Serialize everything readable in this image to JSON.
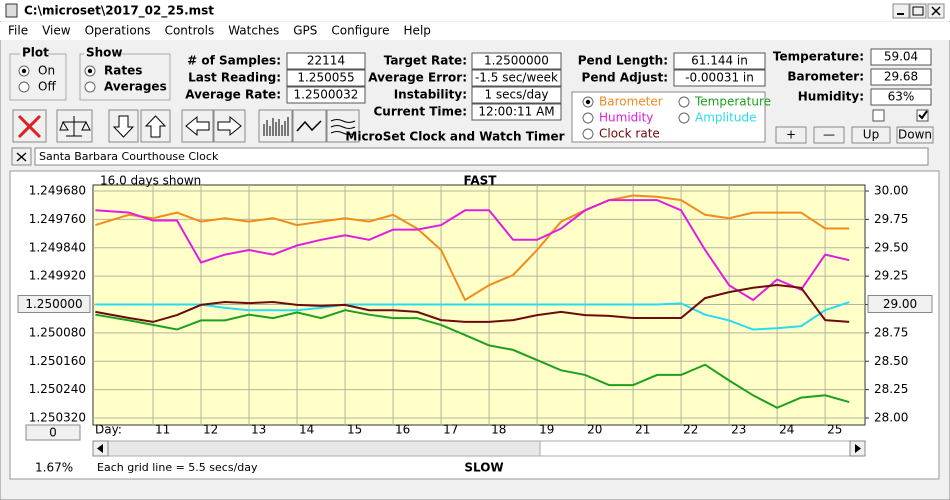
{
  "window": {
    "title": "C:\\microset\\2017_02_25.mst"
  },
  "menu": [
    "File",
    "View",
    "Operations",
    "Controls",
    "Watches",
    "GPS",
    "Configure",
    "Help"
  ],
  "plot_group": {
    "title": "Plot",
    "options": [
      "On",
      "Off"
    ],
    "selected": 0
  },
  "show_group": {
    "title": "Show",
    "options": [
      "Rates",
      "Averages"
    ],
    "selected": 0
  },
  "stats": [
    {
      "label": "# of Samples:",
      "value": "22114"
    },
    {
      "label": "Last Reading:",
      "value": "1.250055"
    },
    {
      "label": "Average Rate:",
      "value": "1.2500032"
    }
  ],
  "rates": [
    {
      "label": "Target Rate:",
      "value": "1.2500000"
    },
    {
      "label": "Average Error:",
      "value": "-1.5 sec/week"
    },
    {
      "label": "Instability:",
      "value": "1 secs/day"
    },
    {
      "label": "Current Time:",
      "value": "12:00:11 AM"
    }
  ],
  "pendulum": [
    {
      "label": "Pend Length:",
      "value": "61.144 in"
    },
    {
      "label": "Pend Adjust:",
      "value": "-0.00031 in"
    }
  ],
  "environment": [
    {
      "label": "Temperature:",
      "value": "59.04"
    },
    {
      "label": "Barometer:",
      "value": "29.68"
    },
    {
      "label": "Humidity:",
      "value": "63%"
    }
  ],
  "checkboxes": [
    false,
    true
  ],
  "environment_buttons": [
    "+",
    "—",
    "Up",
    "Down"
  ],
  "app_title": "MicroSet Clock and Watch Timer",
  "watch_name": "Santa Barbara Courthouse Clock",
  "plot": {
    "type": "line",
    "top_label": "FAST",
    "bottom_label": "SLOW",
    "days_shown": "16.0 days shown",
    "grid_note": "Each grid line = 5.5 secs/day",
    "x_label": "Day:",
    "zoom_label": "1.67%",
    "offset_button": "0",
    "legend_selected": 0,
    "xlim": [
      9.75,
      25.83
    ],
    "xticks": [
      11,
      12,
      13,
      14,
      15,
      16,
      17,
      18,
      19,
      20,
      21,
      22,
      23,
      24,
      25
    ],
    "ylim": [
      1.25032,
      1.24968
    ],
    "yticks": [
      {
        "value": 1.24968,
        "label": "1.249680"
      },
      {
        "value": 1.24976,
        "label": "1.249760"
      },
      {
        "value": 1.24984,
        "label": "1.249840"
      },
      {
        "value": 1.24992,
        "label": "1.249920"
      },
      {
        "value": 1.25,
        "label": "1.250000"
      },
      {
        "value": 1.25008,
        "label": "1.250080"
      },
      {
        "value": 1.25016,
        "label": "1.250160"
      },
      {
        "value": 1.25024,
        "label": "1.250240"
      },
      {
        "value": 1.25032,
        "label": "1.250320"
      }
    ],
    "y2lim": [
      28,
      30
    ],
    "y2ticks": [
      {
        "value": 30,
        "label": "30.00"
      },
      {
        "value": 29.75,
        "label": "29.75"
      },
      {
        "value": 29.5,
        "label": "29.50"
      },
      {
        "value": 29.25,
        "label": "29.25"
      },
      {
        "value": 29,
        "label": "29.00"
      },
      {
        "value": 28.75,
        "label": "28.75"
      },
      {
        "value": 28.5,
        "label": "28.50"
      },
      {
        "value": 28.25,
        "label": "28.25"
      },
      {
        "value": 28,
        "label": "28.00"
      }
    ],
    "grid": true,
    "x": [
      9.8,
      10.5,
      11,
      11.5,
      12,
      12.5,
      13,
      13.5,
      14,
      14.5,
      15,
      15.5,
      16,
      16.5,
      17,
      17.5,
      18,
      18.5,
      19,
      19.5,
      20,
      20.5,
      21,
      21.5,
      22,
      22.5,
      23,
      23.5,
      24,
      24.5,
      25,
      25.5
    ],
    "series": [
      {
        "name": "Barometer",
        "color": "#f08c1e",
        "axis": "y2",
        "values": [
          29.7,
          29.79,
          29.76,
          29.81,
          29.73,
          29.76,
          29.73,
          29.76,
          29.7,
          29.73,
          29.76,
          29.73,
          29.79,
          29.67,
          29.48,
          29.04,
          29.17,
          29.26,
          29.48,
          29.73,
          29.83,
          29.92,
          29.96,
          29.95,
          29.92,
          29.79,
          29.76,
          29.81,
          29.81,
          29.81,
          29.67,
          29.67
        ]
      },
      {
        "name": "Temperature",
        "color": "#1ea01e",
        "axis": "y2",
        "values": [
          28.91,
          28.86,
          28.82,
          28.78,
          28.86,
          28.86,
          28.91,
          28.88,
          28.93,
          28.88,
          28.95,
          28.91,
          28.88,
          28.88,
          28.82,
          28.73,
          28.64,
          28.6,
          28.51,
          28.42,
          28.38,
          28.29,
          28.29,
          28.38,
          28.38,
          28.47,
          28.33,
          28.2,
          28.09,
          28.18,
          28.2,
          28.14
        ]
      },
      {
        "name": "Humidity",
        "color": "#e01ee0",
        "axis": "y2",
        "values": [
          29.83,
          29.81,
          29.74,
          29.74,
          29.37,
          29.44,
          29.48,
          29.44,
          29.52,
          29.57,
          29.61,
          29.57,
          29.66,
          29.66,
          29.7,
          29.83,
          29.83,
          29.57,
          29.57,
          29.67,
          29.83,
          29.92,
          29.92,
          29.92,
          29.83,
          29.48,
          29.17,
          29.04,
          29.22,
          29.13,
          29.44,
          29.39
        ]
      },
      {
        "name": "Amplitude",
        "color": "#28dcf0",
        "axis": "y2",
        "values": [
          29.0,
          29.0,
          29.0,
          29.0,
          29.0,
          28.97,
          28.95,
          28.95,
          28.95,
          28.97,
          29.0,
          29.0,
          29.0,
          29.0,
          29.0,
          29.0,
          29.0,
          29.0,
          29.0,
          29.0,
          29.0,
          29.0,
          29.0,
          29.0,
          29.01,
          28.91,
          28.86,
          28.78,
          28.79,
          28.81,
          28.95,
          29.02
        ]
      },
      {
        "name": "Clock rate",
        "color": "#6e0a0a",
        "axis": "y",
        "values": [
          1.250021,
          1.250038,
          1.250049,
          1.25003,
          1.250001,
          1.249993,
          1.249996,
          1.249993,
          1.250001,
          1.250004,
          1.250001,
          1.250016,
          1.250016,
          1.250021,
          1.250044,
          1.250049,
          1.250049,
          1.250044,
          1.25003,
          1.250021,
          1.25003,
          1.250032,
          1.250038,
          1.250038,
          1.250038,
          1.249982,
          1.249965,
          1.249953,
          1.249945,
          1.249953,
          1.250044,
          1.250049
        ]
      }
    ]
  }
}
